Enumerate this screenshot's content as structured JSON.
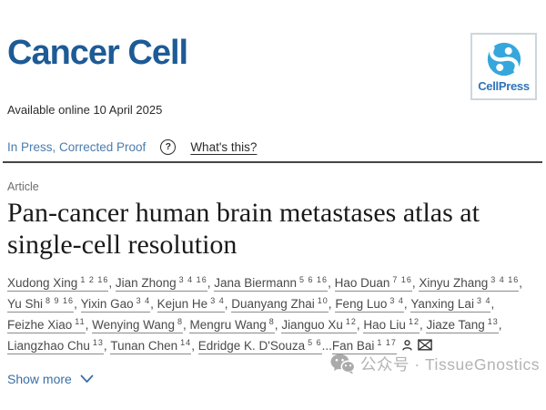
{
  "journal": {
    "name": "Cancer Cell",
    "publisher_logo_text": "CellPress"
  },
  "meta": {
    "available_online": "Available online 10 April 2025",
    "status_label": "In Press, Corrected Proof",
    "help_icon": "?",
    "whats_this_label": "What's this?"
  },
  "article": {
    "type_label": "Article",
    "title": "Pan-cancer human brain metastases atlas at single-cell resolution",
    "show_more_label": "Show more",
    "authors": [
      {
        "name": "Xudong Xing",
        "sups": "1 2 16"
      },
      {
        "name": "Jian Zhong",
        "sups": "3 4 16"
      },
      {
        "name": "Jana Biermann",
        "sups": "5 6 16"
      },
      {
        "name": "Hao Duan",
        "sups": "7 16"
      },
      {
        "name": "Xinyu Zhang",
        "sups": "3 4 16"
      },
      {
        "name": "Yu Shi",
        "sups": "8 9 16"
      },
      {
        "name": "Yixin Gao",
        "sups": "3 4"
      },
      {
        "name": "Kejun He",
        "sups": "3 4"
      },
      {
        "name": "Duanyang Zhai",
        "sups": "10"
      },
      {
        "name": "Feng Luo",
        "sups": "3 4"
      },
      {
        "name": "Yanxing Lai",
        "sups": "3 4"
      },
      {
        "name": "Feizhe Xiao",
        "sups": "11"
      },
      {
        "name": "Wenying Wang",
        "sups": "8"
      },
      {
        "name": "Mengru Wang",
        "sups": "8"
      },
      {
        "name": "Jianguo Xu",
        "sups": "12"
      },
      {
        "name": "Hao Liu",
        "sups": "12"
      },
      {
        "name": "Jiaze Tang",
        "sups": "13"
      },
      {
        "name": "Liangzhao Chu",
        "sups": "13"
      },
      {
        "name": "Tunan Chen",
        "sups": "14"
      },
      {
        "name": "Edridge K. D'Souza",
        "sups": "5 6",
        "sep": "..."
      },
      {
        "name": "Fan Bai",
        "sups": "1 17",
        "sep": "",
        "icons": [
          "person-icon",
          "email-icon"
        ]
      }
    ]
  },
  "watermark": {
    "text": "公众号 · TissueGnostics"
  },
  "colors": {
    "journal_blue": "#1d5b96",
    "cellpress_text_blue": "#2e74b8",
    "cellpress_swirl_blue": "#35a7dc",
    "status_link_blue": "#4a7cae",
    "show_more_blue": "#3c6fa5",
    "author_gray": "#4a4a4a",
    "watermark_gray": "#b3b3b3"
  }
}
